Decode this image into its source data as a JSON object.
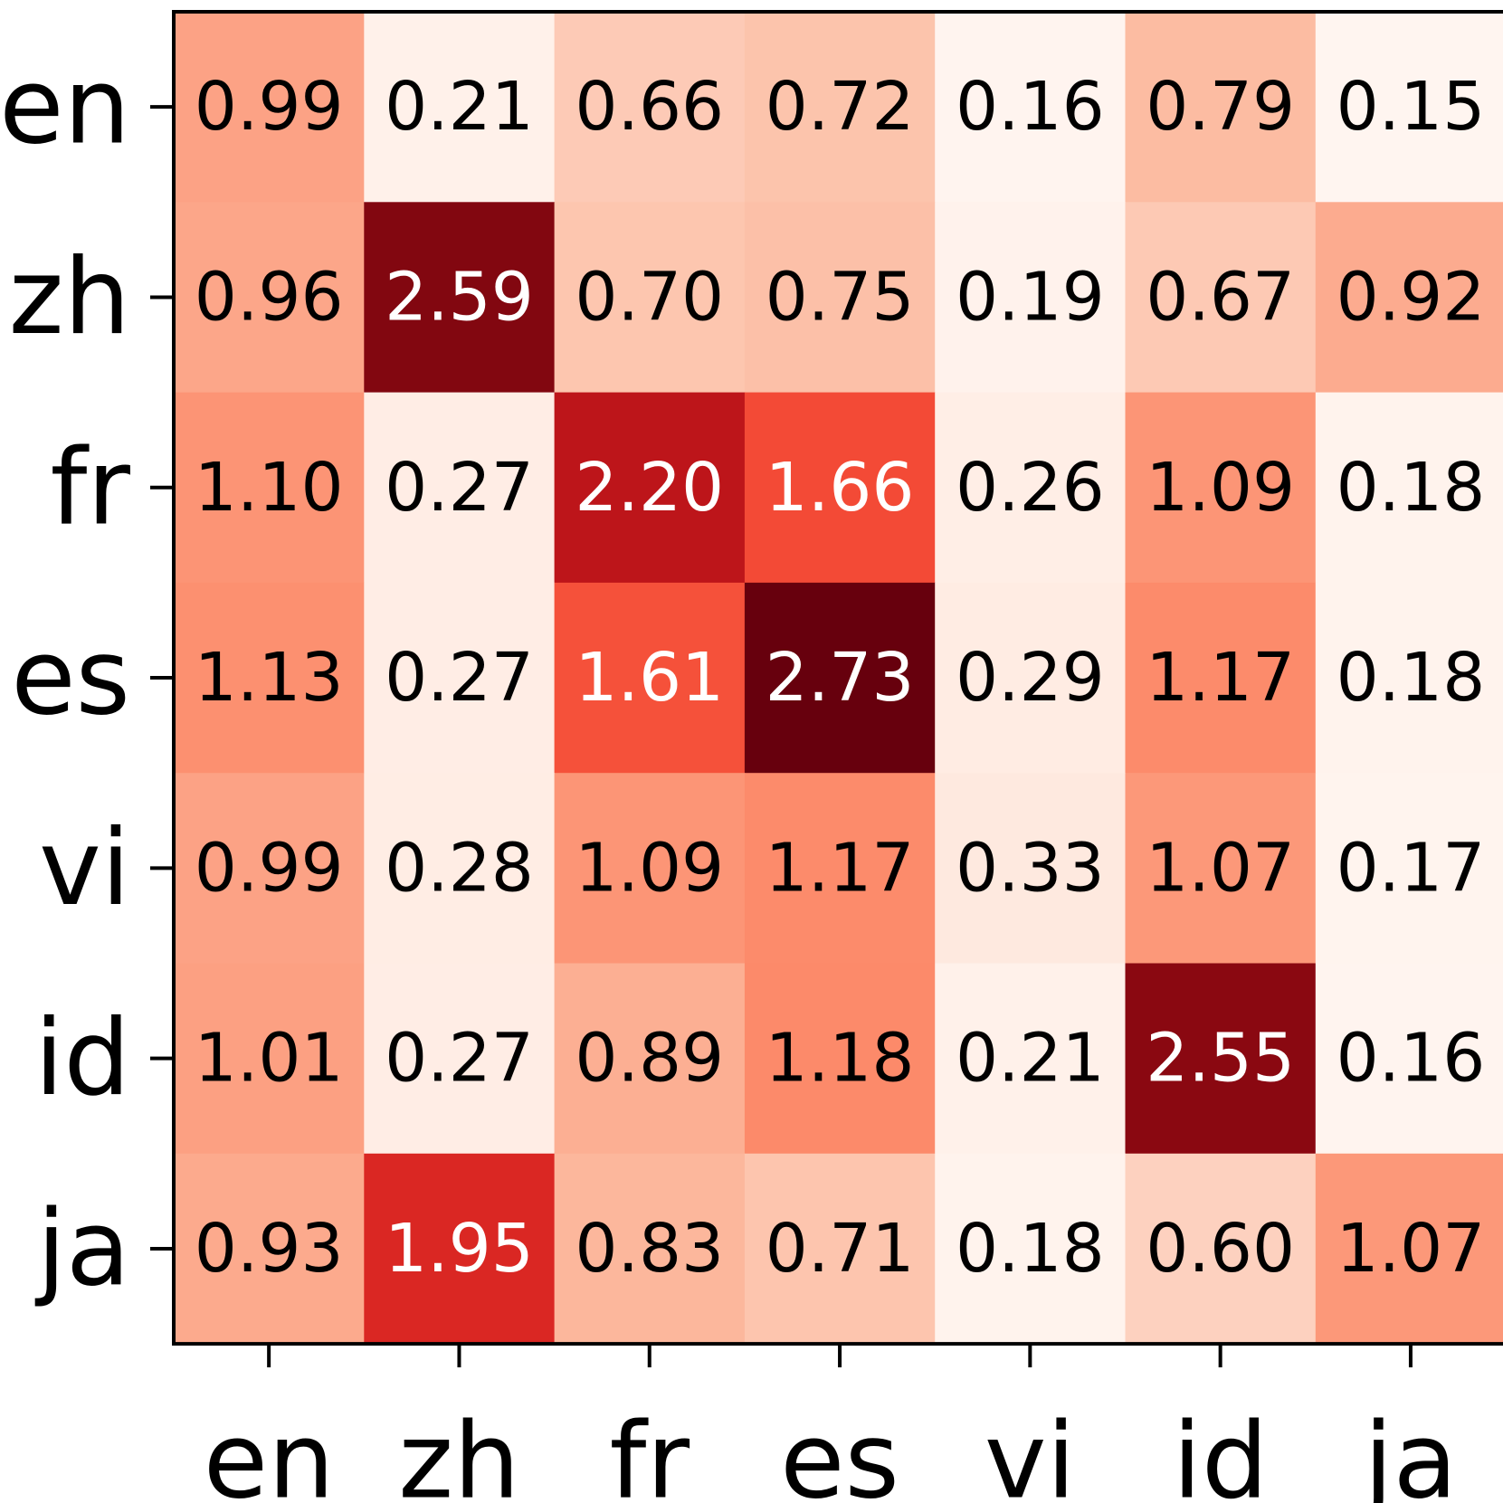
{
  "chart_data": {
    "type": "heatmap",
    "title": "",
    "xlabel": "",
    "ylabel": "",
    "x_categories": [
      "en",
      "zh",
      "fr",
      "es",
      "vi",
      "id",
      "ja"
    ],
    "y_categories": [
      "en",
      "zh",
      "fr",
      "es",
      "vi",
      "id",
      "ja"
    ],
    "values": [
      [
        0.99,
        0.21,
        0.66,
        0.72,
        0.16,
        0.79,
        0.15
      ],
      [
        0.96,
        2.59,
        0.7,
        0.75,
        0.19,
        0.67,
        0.92
      ],
      [
        1.1,
        0.27,
        2.2,
        1.66,
        0.26,
        1.09,
        0.18
      ],
      [
        1.13,
        0.27,
        1.61,
        2.73,
        0.29,
        1.17,
        0.18
      ],
      [
        0.99,
        0.28,
        1.09,
        1.17,
        0.33,
        1.07,
        0.17
      ],
      [
        1.01,
        0.27,
        0.89,
        1.18,
        0.21,
        2.55,
        0.16
      ],
      [
        0.93,
        1.95,
        0.83,
        0.71,
        0.18,
        0.6,
        1.07
      ]
    ],
    "value_format": "2 decimals",
    "colormap": "Reds",
    "color_range": [
      0.15,
      2.73
    ],
    "colorbar": false,
    "grid": false
  }
}
